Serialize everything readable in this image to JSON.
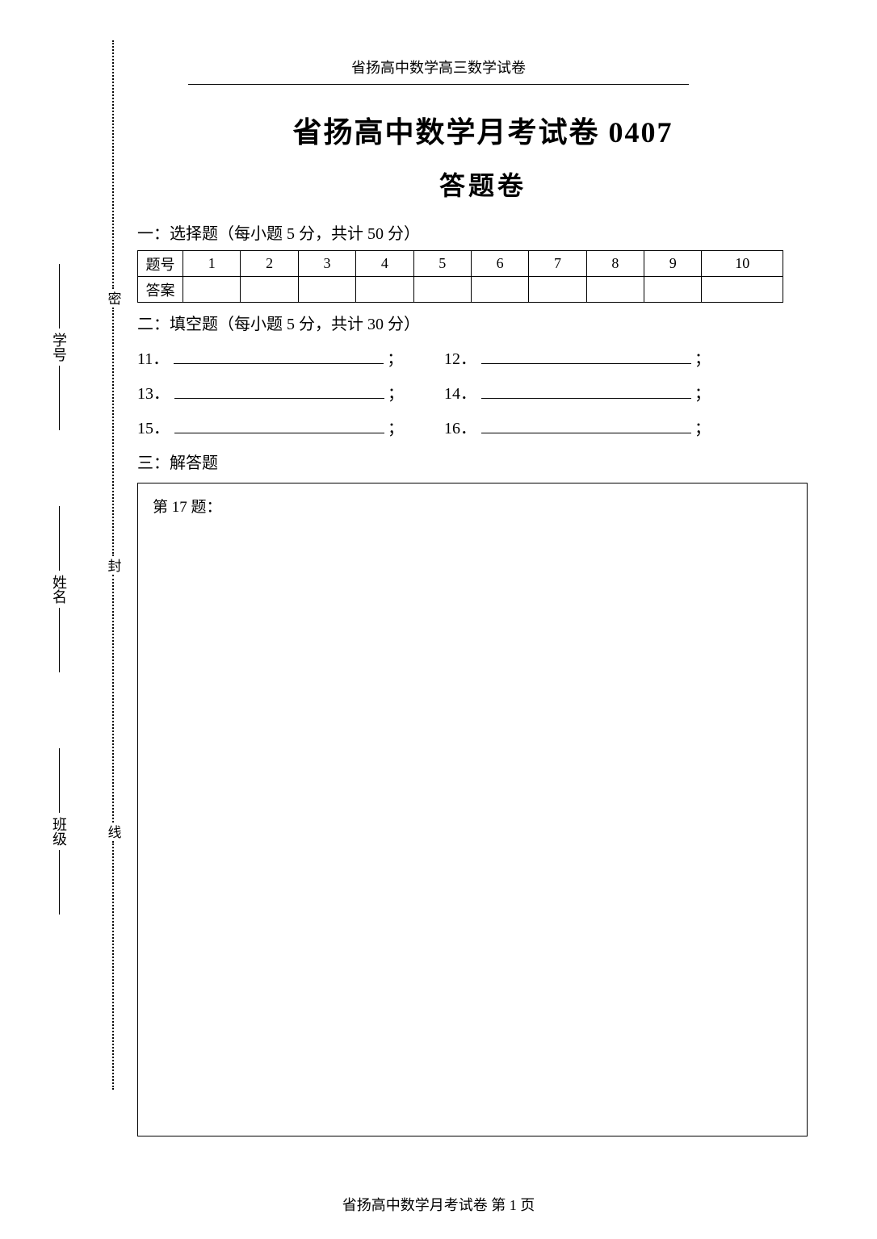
{
  "header_text": "省扬高中数学高三数学试卷",
  "title": "省扬高中数学月考试卷 0407",
  "subtitle": "答题卷",
  "vertical_labels": {
    "class": "班级",
    "name": "姓名",
    "student_id": "学号"
  },
  "seal_line": {
    "char1": "密",
    "char2": "封",
    "char3": "线"
  },
  "section1": {
    "label": "一：选择题（每小题 5 分，共计 50 分）",
    "row_header_q": "题号",
    "row_header_a": "答案",
    "columns": [
      "1",
      "2",
      "3",
      "4",
      "5",
      "6",
      "7",
      "8",
      "9",
      "10"
    ]
  },
  "section2": {
    "label": "二：填空题（每小题 5 分，共计 30 分）",
    "items": [
      {
        "num": "11．",
        "suffix": "；"
      },
      {
        "num": "12．",
        "suffix": "；"
      },
      {
        "num": "13．",
        "suffix": "；"
      },
      {
        "num": "14．",
        "suffix": "；"
      },
      {
        "num": "15．",
        "suffix": "；"
      },
      {
        "num": "16．",
        "suffix": "；"
      }
    ]
  },
  "section3": {
    "label": "三：解答题",
    "q17_label": "第 17 题："
  },
  "footer": "省扬高中数学月考试卷   第 1 页"
}
